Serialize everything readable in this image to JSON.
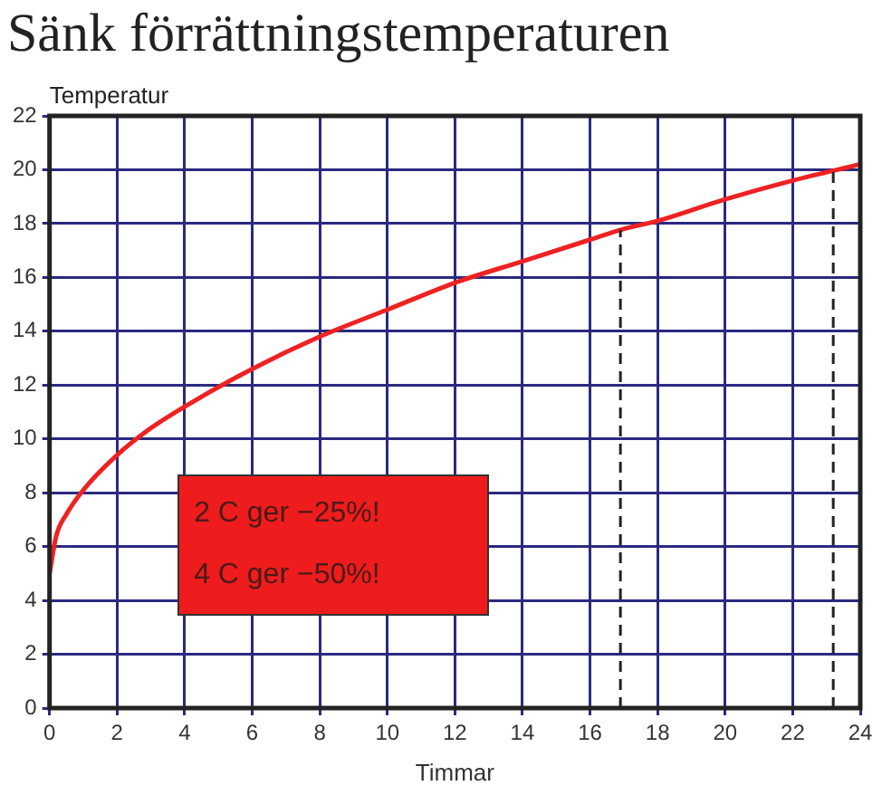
{
  "chart_data": {
    "type": "line",
    "title": "Sänk förrättningstemperaturen",
    "xlabel": "Timmar",
    "ylabel": "Temperatur",
    "x": [
      0,
      0.2,
      0.5,
      1,
      2,
      3,
      4,
      6,
      8,
      10,
      12,
      14,
      16,
      17,
      18,
      20,
      22,
      24
    ],
    "series": [
      {
        "color": "#ee2222",
        "values": [
          5.0,
          6.4,
          7.2,
          8.1,
          9.4,
          10.4,
          11.2,
          12.6,
          13.8,
          14.8,
          15.8,
          16.6,
          17.4,
          17.8,
          18.1,
          18.9,
          19.6,
          20.2
        ]
      }
    ],
    "xlim": [
      0,
      24
    ],
    "xticks": [
      0,
      2,
      4,
      6,
      8,
      10,
      12,
      14,
      16,
      18,
      20,
      22,
      24
    ],
    "ylim": [
      0,
      22
    ],
    "yticks": [
      0,
      2,
      4,
      6,
      8,
      10,
      12,
      14,
      16,
      18,
      20,
      22
    ],
    "ref_lines": [
      {
        "axis": "x",
        "value": 16.9,
        "color": "#222222",
        "line_style": "dashed"
      },
      {
        "axis": "x",
        "value": 23.2,
        "color": "#222222",
        "line_style": "dashed"
      }
    ],
    "annotations": [
      "2 C ger −25%!",
      "4 C ger −50%!"
    ],
    "grid": true,
    "legend": false,
    "marker": "none",
    "line_style": "solid"
  }
}
